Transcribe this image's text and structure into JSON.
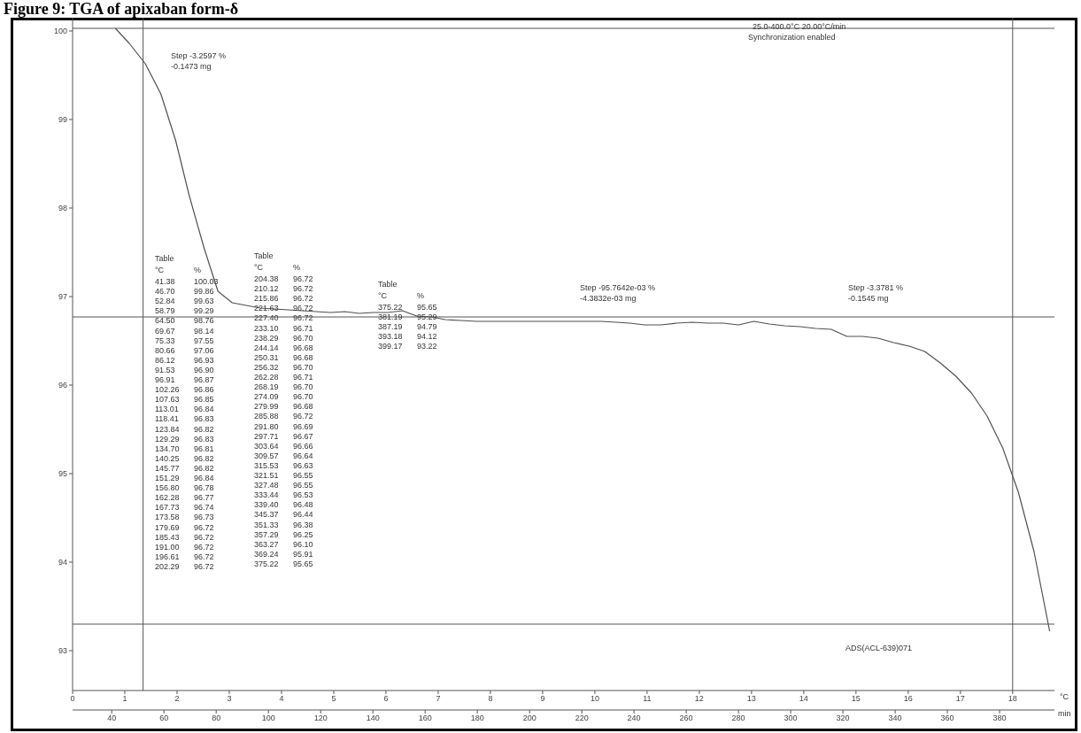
{
  "chart_data": {
    "type": "line",
    "title": "Figure 9: TGA of apixaban form-δ",
    "xlabel": "°C",
    "x2label": "min",
    "xlim": [
      25,
      401
    ],
    "xticks": [
      40,
      60,
      80,
      100,
      120,
      140,
      160,
      180,
      200,
      220,
      240,
      260,
      280,
      300,
      320,
      340,
      360,
      380
    ],
    "x2lim": [
      0,
      18.8
    ],
    "x2ticks": [
      0,
      1,
      2,
      3,
      4,
      5,
      6,
      7,
      8,
      9,
      10,
      11,
      12,
      13,
      14,
      15,
      16,
      17,
      18
    ],
    "ylim": [
      92.55,
      100.15
    ],
    "yticks": [
      93,
      94,
      95,
      96,
      97,
      98,
      99,
      100
    ],
    "series": [
      {
        "color": "#505050",
        "x": [
          41.38,
          46.7,
          52.84,
          58.79,
          64.5,
          69.67,
          75.33,
          80.66,
          86.12,
          91.53,
          96.91,
          102.26,
          107.63,
          113.01,
          118.41,
          123.84,
          129.29,
          134.7,
          140.25,
          145.77,
          151.29,
          156.8,
          162.28,
          167.73,
          173.58,
          179.69,
          185.43,
          191.0,
          196.61,
          202.29,
          204.38,
          210.12,
          215.86,
          221.63,
          227.4,
          233.1,
          238.29,
          244.14,
          250.31,
          256.32,
          262.28,
          268.19,
          274.09,
          279.99,
          285.88,
          291.8,
          297.71,
          303.64,
          309.57,
          315.53,
          321.51,
          327.48,
          333.44,
          339.4,
          345.37,
          351.33,
          357.29,
          363.27,
          369.24,
          375.22,
          381.19,
          387.19,
          393.18,
          399.17
        ],
        "values": [
          100.03,
          99.86,
          99.63,
          99.29,
          98.76,
          98.14,
          97.55,
          97.06,
          96.93,
          96.9,
          96.87,
          96.86,
          96.85,
          96.84,
          96.83,
          96.82,
          96.83,
          96.81,
          96.82,
          96.82,
          96.84,
          96.78,
          96.77,
          96.74,
          96.73,
          96.72,
          96.72,
          96.72,
          96.72,
          96.72,
          96.72,
          96.72,
          96.72,
          96.72,
          96.72,
          96.71,
          96.7,
          96.68,
          96.68,
          96.7,
          96.71,
          96.7,
          96.7,
          96.68,
          96.72,
          96.69,
          96.67,
          96.66,
          96.64,
          96.63,
          96.55,
          96.55,
          96.53,
          96.48,
          96.44,
          96.38,
          96.25,
          96.1,
          95.91,
          95.65,
          95.29,
          94.79,
          94.12,
          93.22
        ]
      }
    ],
    "ref_lines": [
      {
        "axis": "x",
        "value": 52
      },
      {
        "axis": "x",
        "value": 385
      },
      {
        "axis": "y",
        "value": 100.03
      },
      {
        "axis": "y",
        "value": 96.77
      },
      {
        "axis": "y",
        "value": 93.3
      }
    ],
    "annotations": [
      "25.0-400.0°C 20.00°C/min",
      "Synchronization enabled",
      "Step -3.2597 %\n-0.1473 mg",
      "Step -95.7642e-03 %\n-4.3832e-03 mg",
      "Step -3.3781 %\n-0.1545 mg",
      "ADS(ACL-639)071",
      "Table",
      "°C",
      "%",
      "41.38",
      "100.03",
      "46.70",
      "99.86",
      "52.84",
      "99.63",
      "58.79",
      "99.29",
      "64.50",
      "98.76",
      "69.67",
      "98.14",
      "75.33",
      "97.55",
      "80.66",
      "97.06",
      "86.12",
      "96.93",
      "91.53",
      "96.90",
      "96.91",
      "96.87",
      "102.26",
      "96.86",
      "107.63",
      "96.85",
      "113.01",
      "96.84",
      "118.41",
      "96.83",
      "123.84",
      "96.82",
      "129.29",
      "96.83",
      "134.70",
      "96.81",
      "140.25",
      "96.82",
      "145.77",
      "96.82",
      "151.29",
      "96.84",
      "156.80",
      "96.78",
      "162.28",
      "96.77",
      "167.73",
      "96.74",
      "173.58",
      "96.73",
      "179.69",
      "96.72",
      "185.43",
      "96.72",
      "191.00",
      "96.72",
      "196.61",
      "96.72",
      "202.29",
      "96.72",
      "Table",
      "°C",
      "%",
      "204.38",
      "96.72",
      "210.12",
      "96.72",
      "215.86",
      "96.72",
      "221.63",
      "96.72",
      "227.40",
      "96.72",
      "233.10",
      "96.71",
      "238.29",
      "96.70",
      "244.14",
      "96.68",
      "250.31",
      "96.68",
      "256.32",
      "96.70",
      "262.28",
      "96.71",
      "268.19",
      "96.70",
      "274.09",
      "96.70",
      "279.99",
      "96.68",
      "285.88",
      "96.72",
      "291.80",
      "96.69",
      "297.71",
      "96.67",
      "303.64",
      "96.66",
      "309.57",
      "96.64",
      "315.53",
      "96.63",
      "321.51",
      "96.55",
      "327.48",
      "96.55",
      "333.44",
      "96.53",
      "339.40",
      "96.48",
      "345.37",
      "96.44",
      "351.33",
      "96.38",
      "357.29",
      "96.25",
      "363.27",
      "96.10",
      "369.24",
      "95.91",
      "375.22",
      "95.65",
      "Table",
      "°C",
      "%",
      "375.22",
      "95.65",
      "381.19",
      "95.29",
      "387.19",
      "94.79",
      "393.18",
      "94.12",
      "399.17",
      "93.22"
    ]
  }
}
